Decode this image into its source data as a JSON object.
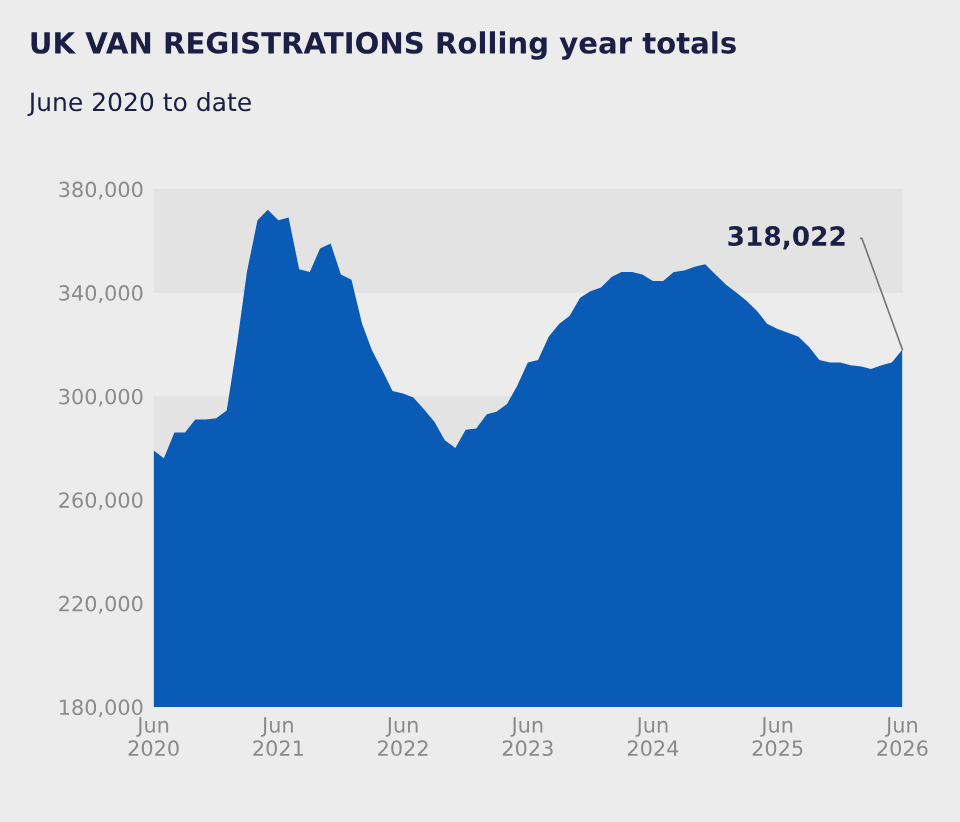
{
  "chart_data": {
    "type": "area",
    "title": "UK VAN REGISTRATIONS Rolling year totals",
    "subtitle": "June 2020 to date",
    "x": [
      "2020-06",
      "2020-07",
      "2020-08",
      "2020-09",
      "2020-10",
      "2020-11",
      "2020-12",
      "2021-01",
      "2021-02",
      "2021-03",
      "2021-04",
      "2021-05",
      "2021-06",
      "2021-07",
      "2021-08",
      "2021-09",
      "2021-10",
      "2021-11",
      "2021-12",
      "2022-01",
      "2022-02",
      "2022-03",
      "2022-04",
      "2022-05",
      "2022-06",
      "2022-07",
      "2022-08",
      "2022-09",
      "2022-10",
      "2022-11",
      "2022-12",
      "2023-01",
      "2023-02",
      "2023-03",
      "2023-04",
      "2023-05",
      "2023-06",
      "2023-07",
      "2023-08",
      "2023-09",
      "2023-10",
      "2023-11",
      "2023-12",
      "2024-01",
      "2024-02",
      "2024-03",
      "2024-04",
      "2024-05",
      "2024-06",
      "2024-07",
      "2024-08",
      "2024-09",
      "2024-10",
      "2024-11",
      "2024-12",
      "2025-01",
      "2025-02",
      "2025-03",
      "2025-04",
      "2025-05",
      "2025-06",
      "2025-07",
      "2025-08",
      "2025-09",
      "2025-10",
      "2025-11",
      "2025-12",
      "2026-01",
      "2026-02",
      "2026-03",
      "2026-04",
      "2026-05",
      "2026-06"
    ],
    "series": [
      {
        "color": "#0a5bb5",
        "values": [
          279000,
          276000,
          286000,
          286000,
          291000,
          291000,
          291500,
          294500,
          321000,
          348000,
          368000,
          372000,
          368000,
          369000,
          349000,
          348000,
          357000,
          359000,
          347000,
          345000,
          328000,
          318000,
          310000,
          302000,
          301000,
          299500,
          295000,
          290000,
          283000,
          280000,
          287000,
          287500,
          293000,
          294000,
          297000,
          304000,
          313000,
          314000,
          323000,
          328000,
          331000,
          338000,
          340500,
          342000,
          346000,
          348000,
          348000,
          347000,
          344500,
          344500,
          348000,
          348500,
          350000,
          351000,
          347000,
          343000,
          340000,
          337000,
          333000,
          328000,
          326000,
          324500,
          323000,
          319000,
          314000,
          313000,
          313000,
          312000,
          311500,
          310500,
          312000,
          313000,
          318022
        ]
      }
    ],
    "annotations": [
      {
        "text": "318,022",
        "x": "2026-06",
        "y": 318022
      }
    ],
    "xlim": [
      "2020-06",
      "2026-06"
    ],
    "xticks": [
      {
        "value": "2020-06",
        "label": "Jun\n2020"
      },
      {
        "value": "2021-06",
        "label": "Jun\n2021"
      },
      {
        "value": "2022-06",
        "label": "Jun\n2022"
      },
      {
        "value": "2023-06",
        "label": "Jun\n2023"
      },
      {
        "value": "2024-06",
        "label": "Jun\n2024"
      },
      {
        "value": "2025-06",
        "label": "Jun\n2025"
      },
      {
        "value": "2026-06",
        "label": "Jun\n2026"
      }
    ],
    "ylim": [
      180000,
      380000
    ],
    "yticks": [
      {
        "value": 180000,
        "label": "180,000"
      },
      {
        "value": 220000,
        "label": "220,000"
      },
      {
        "value": 260000,
        "label": "260,000"
      },
      {
        "value": 300000,
        "label": "300,000"
      },
      {
        "value": 340000,
        "label": "340,000"
      },
      {
        "value": 380000,
        "label": "380,000"
      }
    ],
    "bands": [
      {
        "axis": "y",
        "from": 340000,
        "to": 380000,
        "color": "#e3e3e3"
      },
      {
        "axis": "y",
        "from": 260000,
        "to": 300000,
        "color": "#e3e3e3"
      }
    ],
    "grid": false,
    "legend": false
  }
}
